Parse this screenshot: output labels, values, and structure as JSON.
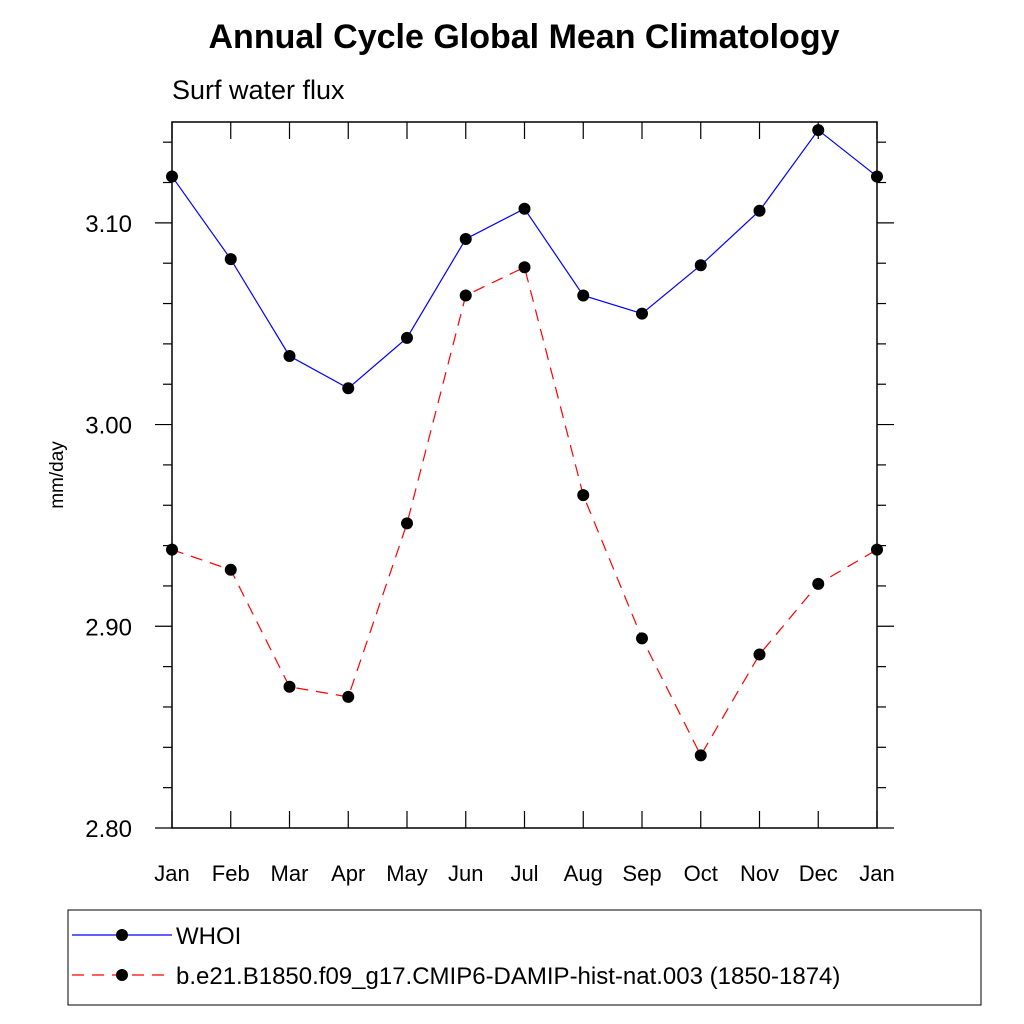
{
  "chart_data": {
    "type": "line",
    "title": "Annual Cycle Global Mean Climatology",
    "subtitle": "Surf water flux",
    "xlabel": "",
    "ylabel": "mm/day",
    "ylim": [
      2.8,
      3.15
    ],
    "yticks": [
      2.8,
      2.9,
      3.0,
      3.1
    ],
    "ytick_labels": [
      "2.80",
      "2.90",
      "3.00",
      "3.10"
    ],
    "categories": [
      "Jan",
      "Feb",
      "Mar",
      "Apr",
      "May",
      "Jun",
      "Jul",
      "Aug",
      "Sep",
      "Oct",
      "Nov",
      "Dec",
      "Jan"
    ],
    "series": [
      {
        "name": "WHOI",
        "color": "#0000ff",
        "dash": "solid",
        "values": [
          3.123,
          3.082,
          3.034,
          3.018,
          3.043,
          3.092,
          3.107,
          3.064,
          3.055,
          3.079,
          3.106,
          3.146,
          3.123
        ]
      },
      {
        "name": "b.e21.B1850.f09_g17.CMIP6-DAMIP-hist-nat.003 (1850-1874)",
        "color": "#ff0000",
        "dash": "dashed",
        "values": [
          2.938,
          2.928,
          2.87,
          2.865,
          2.951,
          3.064,
          3.078,
          2.965,
          2.894,
          2.836,
          2.886,
          2.921,
          2.938
        ]
      }
    ],
    "legend_position": "bottom"
  }
}
